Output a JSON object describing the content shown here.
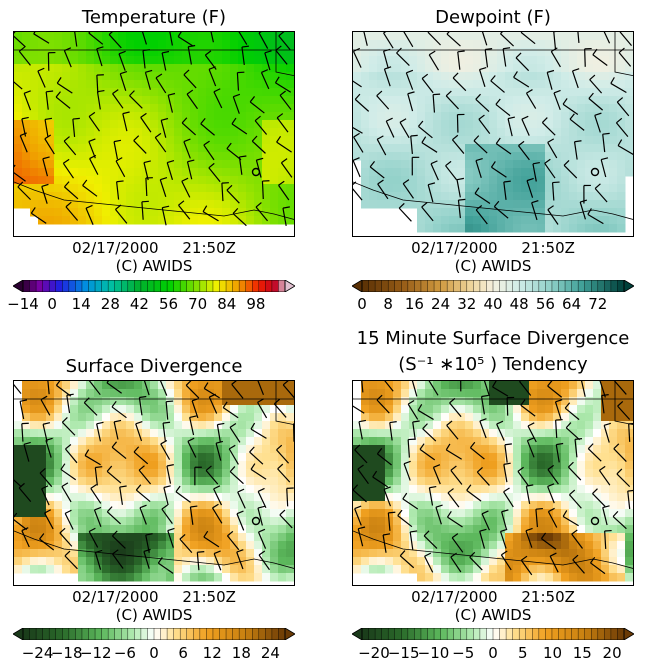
{
  "colors": {
    "frame": "#000000",
    "barb": "#000000"
  },
  "timestamp": {
    "date": "02/17/2000",
    "time": "21:50Z",
    "credit": "(C) AWIDS"
  },
  "chart_data": [
    {
      "type": "heatmap",
      "title": "Temperature (F)",
      "subtitle": "",
      "colormap": "temperature-rainbow",
      "colorbar_ticks": [
        "−14",
        "0",
        "14",
        "28",
        "42",
        "56",
        "70",
        "84",
        "98"
      ],
      "colorbar_range": [
        -14,
        112
      ],
      "dominant_value": 56
    },
    {
      "type": "heatmap",
      "title": "Dewpoint (F)",
      "subtitle": "",
      "colormap": "brown-teal",
      "colorbar_ticks": [
        "0",
        "8",
        "16",
        "24",
        "32",
        "40",
        "48",
        "56",
        "64",
        "72"
      ],
      "colorbar_range": [
        0,
        80
      ],
      "dominant_value": 44
    },
    {
      "type": "heatmap",
      "title": "Surface Divergence",
      "subtitle": "",
      "colormap": "green-white-orange",
      "colorbar_ticks": [
        "−24",
        "−18",
        "−12",
        "−6",
        "0",
        "6",
        "12",
        "18",
        "24"
      ],
      "colorbar_range": [
        -27,
        27
      ],
      "dominant_value": 0
    },
    {
      "type": "heatmap",
      "title": "15 Minute Surface Divergence",
      "subtitle": "(S⁻¹ ∗10⁵ ) Tendency",
      "colormap": "green-white-orange",
      "colorbar_ticks": [
        "−20",
        "−15",
        "−10",
        "−5",
        "0",
        "5",
        "10",
        "15",
        "20"
      ],
      "colorbar_range": [
        -22,
        22
      ],
      "dominant_value": 0
    }
  ]
}
